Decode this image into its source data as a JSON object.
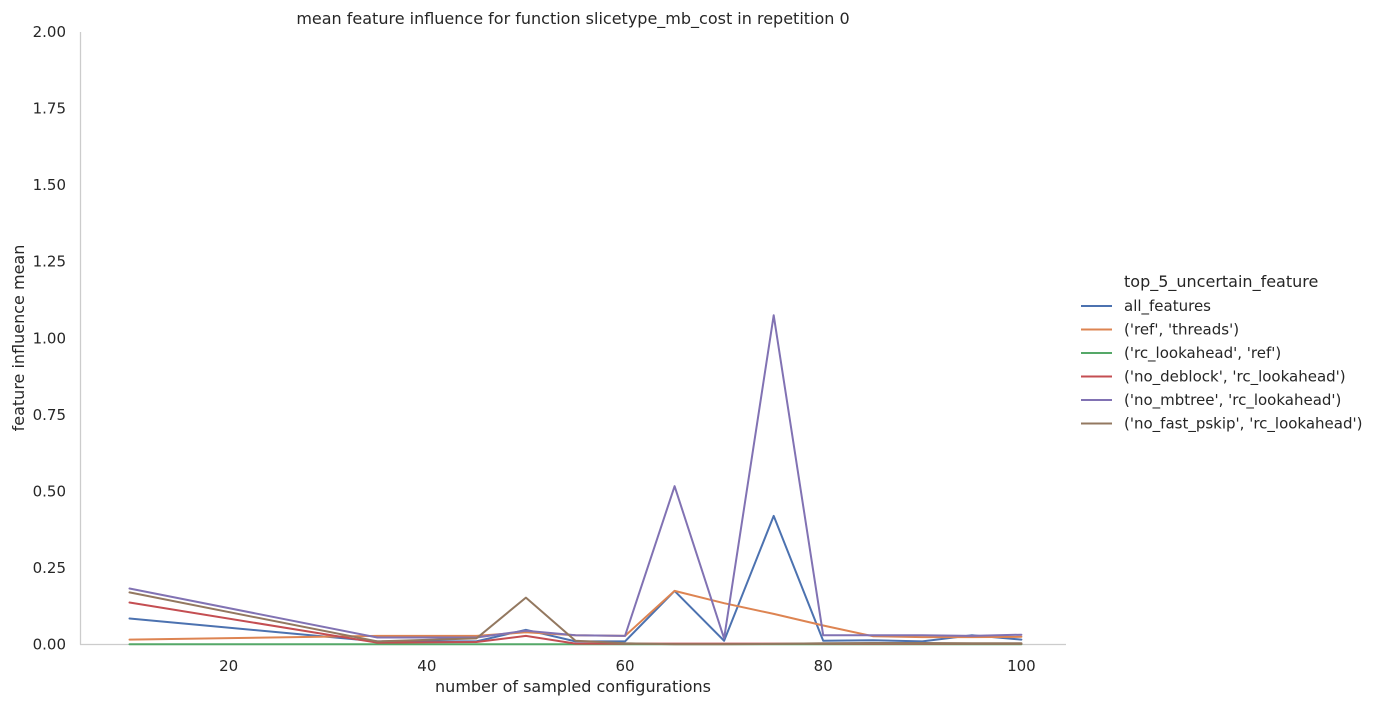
{
  "chart_data": {
    "type": "line",
    "title": "mean feature influence for function slicetype_mb_cost in repetition 0",
    "xlabel": "number of sampled configurations",
    "ylabel": "feature influence mean",
    "xlim": [
      5,
      104.5
    ],
    "ylim": [
      0,
      2
    ],
    "xticks": [
      20,
      40,
      60,
      80,
      100
    ],
    "yticks": [
      "0.00",
      "0.25",
      "0.50",
      "0.75",
      "1.00",
      "1.25",
      "1.50",
      "1.75",
      "2.00"
    ],
    "grid": false,
    "legend": {
      "title": "top_5_uncertain_feature",
      "placement": "right"
    },
    "x": [
      10,
      35,
      45,
      50,
      55,
      60,
      65,
      70,
      75,
      80,
      85,
      90,
      95,
      100
    ],
    "series": [
      {
        "name": "all_features",
        "color": "#4c72b0",
        "values": [
          0.085,
          0.01,
          0.01,
          0.048,
          0.01,
          0.01,
          0.175,
          0.012,
          0.42,
          0.012,
          0.014,
          0.01,
          0.03,
          0.016
        ]
      },
      {
        "name": "('ref', 'threads')",
        "color": "#dd8452",
        "values": [
          0.016,
          0.028,
          0.028,
          0.04,
          0.03,
          0.028,
          0.175,
          0.135,
          0.1,
          0.062,
          0.027,
          0.024,
          0.024,
          0.025
        ]
      },
      {
        "name": "('rc_lookahead', 'ref')",
        "color": "#55a868",
        "values": [
          0.001,
          0.001,
          0.001,
          0.001,
          0.001,
          0.001,
          0.001,
          0.001,
          0.001,
          0.001,
          0.001,
          0.001,
          0.001,
          0.001
        ]
      },
      {
        "name": "('no_deblock', 'rc_lookahead')",
        "color": "#c44e52",
        "values": [
          0.137,
          0.006,
          0.008,
          0.028,
          0.003,
          0.003,
          0.003,
          0.003,
          0.003,
          0.003,
          0.003,
          0.003,
          0.003,
          0.003
        ]
      },
      {
        "name": "('no_mbtree', 'rc_lookahead')",
        "color": "#8172b3",
        "values": [
          0.183,
          0.023,
          0.023,
          0.045,
          0.03,
          0.028,
          0.517,
          0.02,
          1.075,
          0.03,
          0.03,
          0.03,
          0.028,
          0.032
        ]
      },
      {
        "name": "('no_fast_pskip', 'rc_lookahead')",
        "color": "#937860",
        "values": [
          0.17,
          0.01,
          0.02,
          0.153,
          0.012,
          0.004,
          0.001,
          0.001,
          0.002,
          0.004,
          0.005,
          0.005,
          0.004,
          0.004
        ]
      }
    ]
  }
}
